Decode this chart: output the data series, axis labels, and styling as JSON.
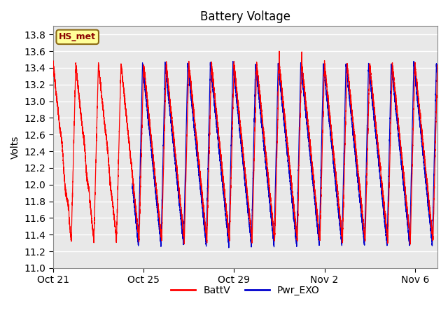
{
  "title": "Battery Voltage",
  "ylabel": "Volts",
  "ylim": [
    11.0,
    13.9
  ],
  "yticks": [
    11.0,
    11.2,
    11.4,
    11.6,
    11.8,
    12.0,
    12.2,
    12.4,
    12.6,
    12.8,
    13.0,
    13.2,
    13.4,
    13.6,
    13.8
  ],
  "xtick_labels": [
    "Oct 21",
    "Oct 25",
    "Oct 29",
    "Nov 2",
    "Nov 6"
  ],
  "xtick_positions": [
    0,
    4,
    8,
    12,
    16
  ],
  "batt_color": "#FF0000",
  "exo_color": "#0000CD",
  "legend_labels": [
    "BattV",
    "Pwr_EXO"
  ],
  "annotation_text": "HS_met",
  "annotation_bg": "#FFFF99",
  "annotation_border": "#8B6914",
  "plot_bg": "#E8E8E8",
  "grid_color": "#FFFFFF",
  "n_days": 17,
  "batt_max": 13.45,
  "batt_min": 11.33,
  "exo_max": 13.45,
  "exo_min": 11.27,
  "title_fontsize": 12,
  "label_fontsize": 10,
  "tick_fontsize": 10
}
